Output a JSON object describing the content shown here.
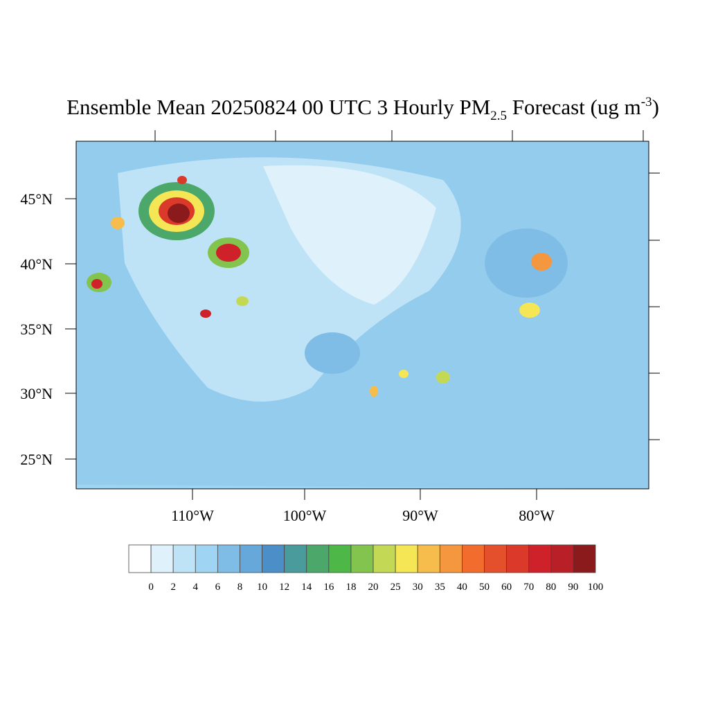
{
  "map": {
    "title": {
      "main": "Ensemble Mean 20250824 00 UTC 3 Hourly PM",
      "sub": "2.5",
      "rest": " Forecast (ug m",
      "sup": "-3",
      "end": ")"
    },
    "lat_labels": [
      "45°N",
      "40°N",
      "35°N",
      "30°N",
      "25°N"
    ],
    "lon_labels": [
      "110°W",
      "100°W",
      "90°W",
      "80°W"
    ]
  },
  "colorbar": {
    "levels": [
      0,
      2,
      4,
      6,
      8,
      10,
      12,
      14,
      16,
      18,
      20,
      25,
      30,
      35,
      40,
      50,
      60,
      70,
      80,
      90,
      100
    ],
    "colors": [
      "#ffffff",
      "#dff1fb",
      "#bfe3f6",
      "#9fd5f2",
      "#7fbde6",
      "#67a8da",
      "#4b8ec8",
      "#4a9c9c",
      "#4ca86a",
      "#4db848",
      "#83c44e",
      "#c3d956",
      "#f5e656",
      "#f6bd4c",
      "#f4973f",
      "#f26d2d",
      "#e5502c",
      "#db3a2a",
      "#cf2129",
      "#b91f27",
      "#8a1a1c"
    ]
  }
}
